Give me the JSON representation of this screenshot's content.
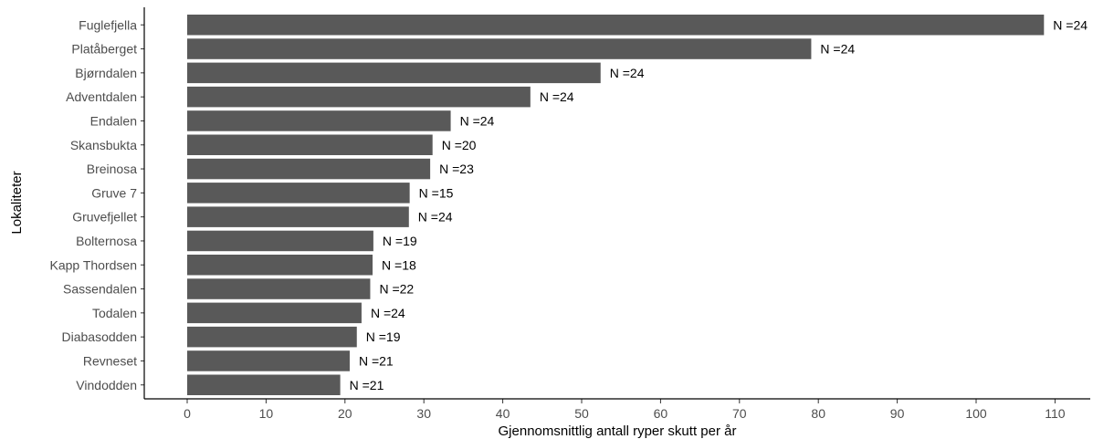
{
  "chart_data": {
    "type": "bar",
    "orientation": "horizontal",
    "xlabel": "Gjennomsnittlig antall ryper skutt per år",
    "ylabel": "Lokaliteter",
    "xlim": [
      0,
      110
    ],
    "xticks": [
      0,
      10,
      20,
      30,
      40,
      50,
      60,
      70,
      80,
      90,
      100,
      110
    ],
    "grid": false,
    "bar_color": "#595959",
    "categories": [
      "Fuglefjella",
      "Platåberget",
      "Bjørndalen",
      "Adventdalen",
      "Endalen",
      "Skansbukta",
      "Breinosa",
      "Gruve 7",
      "Gruvefjellet",
      "Bolternosa",
      "Kapp Thordsen",
      "Sassendalen",
      "Todalen",
      "Diabasodden",
      "Revneset",
      "Vindodden"
    ],
    "values": [
      108.6,
      79.1,
      52.4,
      43.5,
      33.4,
      31.1,
      30.8,
      28.2,
      28.1,
      23.6,
      23.5,
      23.2,
      22.1,
      21.5,
      20.6,
      19.4
    ],
    "labels": [
      "N =24",
      "N =24",
      "N =24",
      "N =24",
      "N =24",
      "N =20",
      "N =23",
      "N =15",
      "N =24",
      "N =19",
      "N =18",
      "N =22",
      "N =24",
      "N =19",
      "N =21",
      "N =21"
    ]
  }
}
